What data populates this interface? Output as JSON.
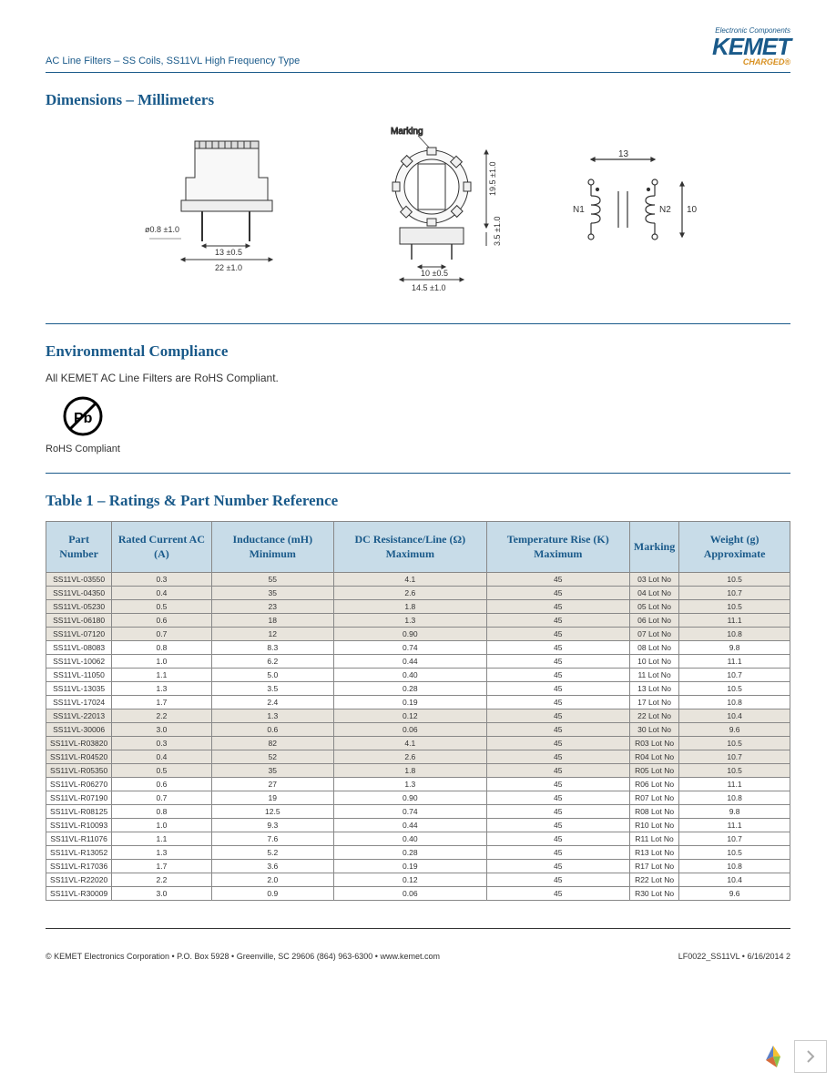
{
  "header": {
    "title": "AC Line Filters – SS Coils, SS11VL High Frequency Type",
    "logo_sup": "Electronic Components",
    "logo_main": "KEMET",
    "logo_sub": "CHARGED®"
  },
  "sections": {
    "dimensions_title": "Dimensions – Millimeters",
    "env_title": "Environmental Compliance",
    "env_text": "All KEMET AC Line Filters are RoHS Compliant.",
    "rohs_label": "RoHS Compliant",
    "table_title": "Table 1 – Ratings & Part Number Reference"
  },
  "diagram": {
    "marking_label": "Marking",
    "dim1": "ø0.8 ±1.0",
    "dim2": "13 ±0.5",
    "dim3": "22 ±1.0",
    "dim4": "10 ±0.5",
    "dim5": "14.5 ±1.0",
    "dim6": "19.5 ±1.0",
    "dim7": "3.5 ±1.0",
    "dim8": "13",
    "dim9": "10",
    "n1": "N1",
    "n2": "N2"
  },
  "table": {
    "columns": [
      "Part Number",
      "Rated Current AC (A)",
      "Inductance (mH) Minimum",
      "DC Resistance/Line (Ω) Maximum",
      "Temperature Rise (K) Maximum",
      "Marking",
      "Weight (g) Approximate"
    ],
    "rows": [
      [
        "SS11VL-03550",
        "0.3",
        "55",
        "4.1",
        "45",
        "03 Lot No",
        "10.5"
      ],
      [
        "SS11VL-04350",
        "0.4",
        "35",
        "2.6",
        "45",
        "04 Lot No",
        "10.7"
      ],
      [
        "SS11VL-05230",
        "0.5",
        "23",
        "1.8",
        "45",
        "05 Lot No",
        "10.5"
      ],
      [
        "SS11VL-06180",
        "0.6",
        "18",
        "1.3",
        "45",
        "06 Lot No",
        "11.1"
      ],
      [
        "SS11VL-07120",
        "0.7",
        "12",
        "0.90",
        "45",
        "07 Lot No",
        "10.8"
      ],
      [
        "SS11VL-08083",
        "0.8",
        "8.3",
        "0.74",
        "45",
        "08 Lot No",
        "9.8"
      ],
      [
        "SS11VL-10062",
        "1.0",
        "6.2",
        "0.44",
        "45",
        "10 Lot No",
        "11.1"
      ],
      [
        "SS11VL-11050",
        "1.1",
        "5.0",
        "0.40",
        "45",
        "11 Lot No",
        "10.7"
      ],
      [
        "SS11VL-13035",
        "1.3",
        "3.5",
        "0.28",
        "45",
        "13 Lot No",
        "10.5"
      ],
      [
        "SS11VL-17024",
        "1.7",
        "2.4",
        "0.19",
        "45",
        "17 Lot No",
        "10.8"
      ],
      [
        "SS11VL-22013",
        "2.2",
        "1.3",
        "0.12",
        "45",
        "22 Lot No",
        "10.4"
      ],
      [
        "SS11VL-30006",
        "3.0",
        "0.6",
        "0.06",
        "45",
        "30 Lot No",
        "9.6"
      ],
      [
        "SS11VL-R03820",
        "0.3",
        "82",
        "4.1",
        "45",
        "R03 Lot No",
        "10.5"
      ],
      [
        "SS11VL-R04520",
        "0.4",
        "52",
        "2.6",
        "45",
        "R04 Lot No",
        "10.7"
      ],
      [
        "SS11VL-R05350",
        "0.5",
        "35",
        "1.8",
        "45",
        "R05 Lot No",
        "10.5"
      ],
      [
        "SS11VL-R06270",
        "0.6",
        "27",
        "1.3",
        "45",
        "R06 Lot No",
        "11.1"
      ],
      [
        "SS11VL-R07190",
        "0.7",
        "19",
        "0.90",
        "45",
        "R07 Lot No",
        "10.8"
      ],
      [
        "SS11VL-R08125",
        "0.8",
        "12.5",
        "0.74",
        "45",
        "R08 Lot No",
        "9.8"
      ],
      [
        "SS11VL-R10093",
        "1.0",
        "9.3",
        "0.44",
        "45",
        "R10 Lot No",
        "11.1"
      ],
      [
        "SS11VL-R11076",
        "1.1",
        "7.6",
        "0.40",
        "45",
        "R11 Lot No",
        "10.7"
      ],
      [
        "SS11VL-R13052",
        "1.3",
        "5.2",
        "0.28",
        "45",
        "R13 Lot No",
        "10.5"
      ],
      [
        "SS11VL-R17036",
        "1.7",
        "3.6",
        "0.19",
        "45",
        "R17 Lot No",
        "10.8"
      ],
      [
        "SS11VL-R22020",
        "2.2",
        "2.0",
        "0.12",
        "45",
        "R22 Lot No",
        "10.4"
      ],
      [
        "SS11VL-R30009",
        "3.0",
        "0.9",
        "0.06",
        "45",
        "R30 Lot No",
        "9.6"
      ]
    ],
    "alt_rows": [
      0,
      1,
      2,
      3,
      4,
      10,
      11,
      12,
      13,
      14
    ]
  },
  "footer": {
    "left": "© KEMET Electronics Corporation • P.O. Box 5928 • Greenville, SC 29606 (864) 963-6300 • www.kemet.com",
    "right": "LF0022_SS11VL • 6/16/2014      2"
  },
  "colors": {
    "brand_blue": "#1a5a8a",
    "brand_orange": "#d89020",
    "table_header_bg": "#c8dce8",
    "alt_row_bg": "#e8e4dc"
  }
}
